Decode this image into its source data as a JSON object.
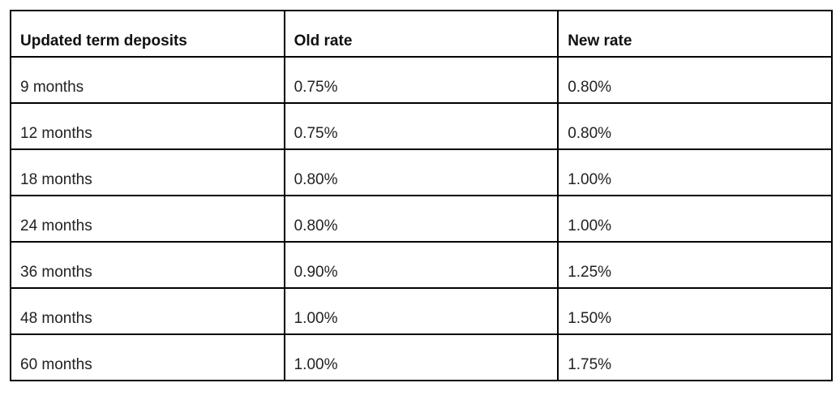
{
  "table": {
    "header": [
      "Updated term deposits",
      "Old rate",
      "New rate"
    ],
    "rows": [
      [
        "9 months",
        "0.75%",
        "0.80%"
      ],
      [
        "12 months",
        "0.75%",
        "0.80%"
      ],
      [
        "18 months",
        "0.80%",
        "1.00%"
      ],
      [
        "24 months",
        "0.80%",
        "1.00%"
      ],
      [
        "36 months",
        "0.90%",
        "1.25%"
      ],
      [
        "48 months",
        "1.00%",
        "1.50%"
      ],
      [
        "60 months",
        "1.00%",
        "1.75%"
      ]
    ]
  }
}
